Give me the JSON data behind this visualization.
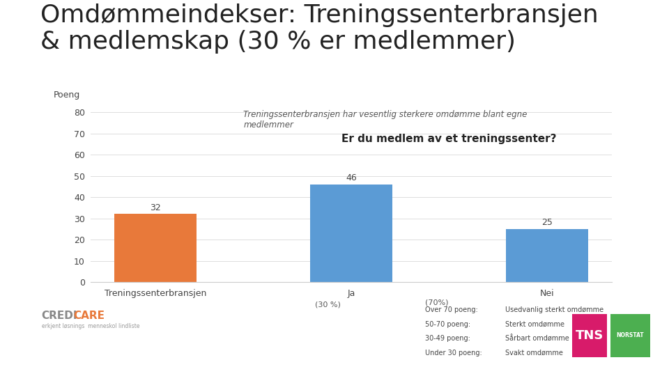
{
  "title_line1": "Omdømmeindekser: Treningssenterbransjen",
  "title_line2": "& medlemskap (30 % er medlemmer)",
  "ylabel": "Poeng",
  "categories": [
    "Treningssenterbransjen",
    "Ja",
    "Nei"
  ],
  "values": [
    32,
    46,
    25
  ],
  "bar_colors": [
    "#E8793A",
    "#5B9BD5",
    "#5B9BD5"
  ],
  "ylim": [
    0,
    85
  ],
  "yticks": [
    0,
    10,
    20,
    30,
    40,
    50,
    60,
    70,
    80
  ],
  "annotation_text": "Treningssenterbransjen har vesentlig sterkere omdømme blant egne\nmedlemmer",
  "question_text": "Er du medlem av et treningssenter?",
  "pct_30": "(30 %)",
  "pct_70": "(70%)",
  "legend_lines": [
    [
      "Over 70 poeng:",
      "Usedvanlig sterkt omdømme"
    ],
    [
      "50-70 poeng:",
      "Sterkt omdømme"
    ],
    [
      "30-49 poeng:",
      "Sårbart omdømme"
    ],
    [
      "Under 30 poeng:",
      "Svakt omdømme"
    ]
  ],
  "background_color": "#FFFFFF",
  "title_fontsize": 26,
  "axis_fontsize": 9,
  "bar_label_fontsize": 9,
  "annotation_fontsize": 8.5,
  "question_fontsize": 11
}
